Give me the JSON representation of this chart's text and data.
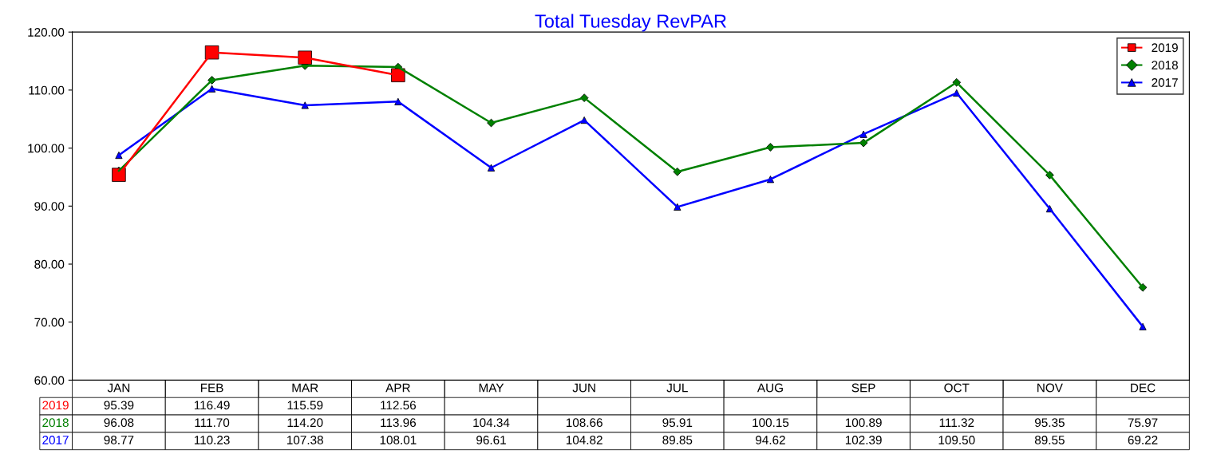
{
  "chart_data": {
    "type": "line",
    "title": "Total Tuesday RevPAR",
    "categories": [
      "JAN",
      "FEB",
      "MAR",
      "APR",
      "MAY",
      "JUN",
      "JUL",
      "AUG",
      "SEP",
      "OCT",
      "NOV",
      "DEC"
    ],
    "series": [
      {
        "name": "2019",
        "color": "#ff0000",
        "marker": "square",
        "values": [
          95.39,
          116.49,
          115.59,
          112.56,
          null,
          null,
          null,
          null,
          null,
          null,
          null,
          null
        ],
        "value_labels": [
          "95.39",
          "116.49",
          "115.59",
          "112.56",
          null,
          null,
          null,
          null,
          null,
          null,
          null,
          null
        ]
      },
      {
        "name": "2018",
        "color": "#008000",
        "marker": "diamond",
        "values": [
          96.08,
          111.7,
          114.2,
          113.96,
          104.34,
          108.66,
          95.91,
          100.15,
          100.89,
          111.32,
          95.35,
          75.97
        ],
        "value_labels": [
          "96.08",
          "111.70",
          "114.20",
          "113.96",
          "104.34",
          "108.66",
          "95.91",
          "100.15",
          "100.89",
          "111.32",
          "95.35",
          "75.97"
        ]
      },
      {
        "name": "2017",
        "color": "#0000ff",
        "marker": "triangle",
        "values": [
          98.77,
          110.23,
          107.38,
          108.01,
          96.61,
          104.82,
          89.85,
          94.62,
          102.39,
          109.5,
          89.55,
          69.22
        ],
        "value_labels": [
          "98.77",
          "110.23",
          "107.38",
          "108.01",
          "96.61",
          "104.82",
          "89.85",
          "94.62",
          "102.39",
          "109.50",
          "89.55",
          "69.22"
        ]
      }
    ],
    "ylim": [
      60,
      120
    ],
    "yticks": [
      {
        "value": 60,
        "label": "60.00"
      },
      {
        "value": 70,
        "label": "70.00"
      },
      {
        "value": 80,
        "label": "80.00"
      },
      {
        "value": 90,
        "label": "90.00"
      },
      {
        "value": 100,
        "label": "100.00"
      },
      {
        "value": 110,
        "label": "110.00"
      },
      {
        "value": 120,
        "label": "120.00"
      }
    ],
    "grid": false,
    "legend": "top right",
    "line_style": "solid",
    "tick_labels": "y"
  }
}
